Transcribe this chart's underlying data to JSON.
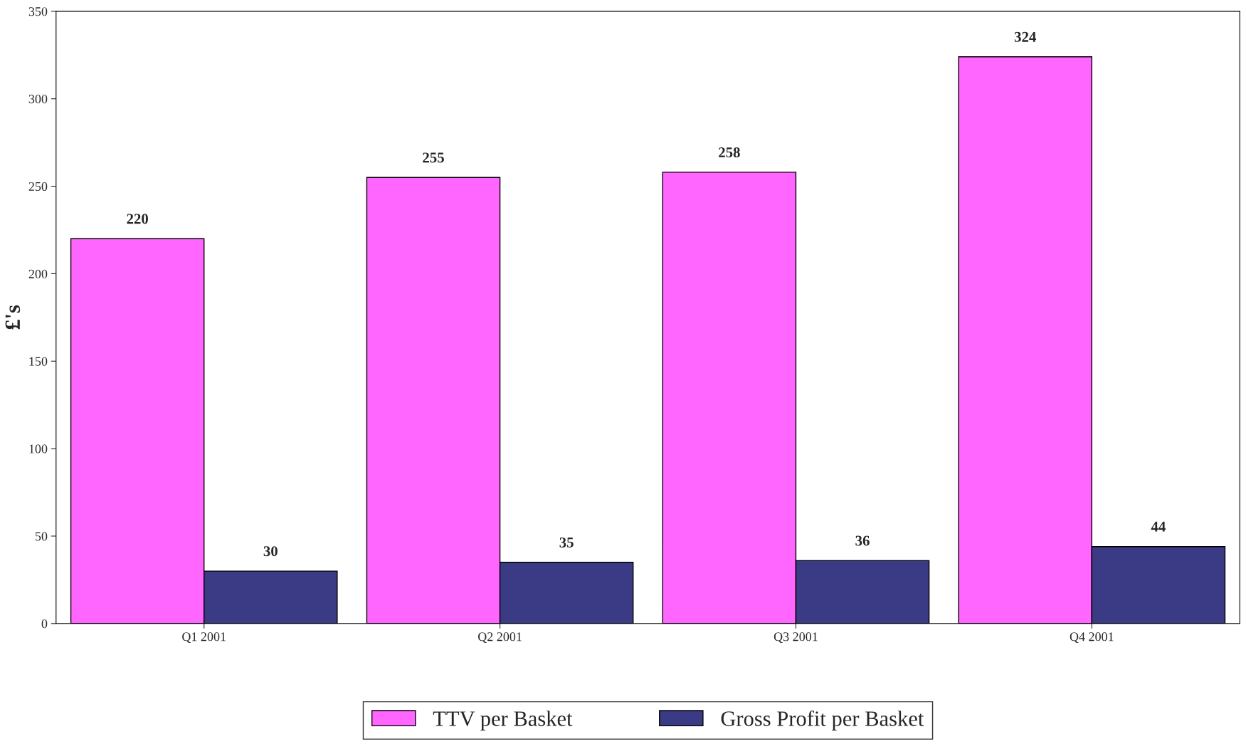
{
  "chart_data": {
    "type": "bar",
    "ylabel": "£'s",
    "categories": [
      "Q1 2001",
      "Q2 2001",
      "Q3 2001",
      "Q4 2001"
    ],
    "series": [
      {
        "name": "TTV per Basket",
        "color": "#ff66ff",
        "values": [
          220,
          255,
          258,
          324
        ]
      },
      {
        "name": "Gross Profit per Basket",
        "color": "#3a3a85",
        "values": [
          30,
          35,
          36,
          44
        ]
      }
    ],
    "ylim": [
      0,
      350
    ],
    "yticks": [
      0,
      50,
      100,
      150,
      200,
      250,
      300,
      350
    ],
    "data_labels": true,
    "grid": false,
    "legend": "bottom"
  }
}
